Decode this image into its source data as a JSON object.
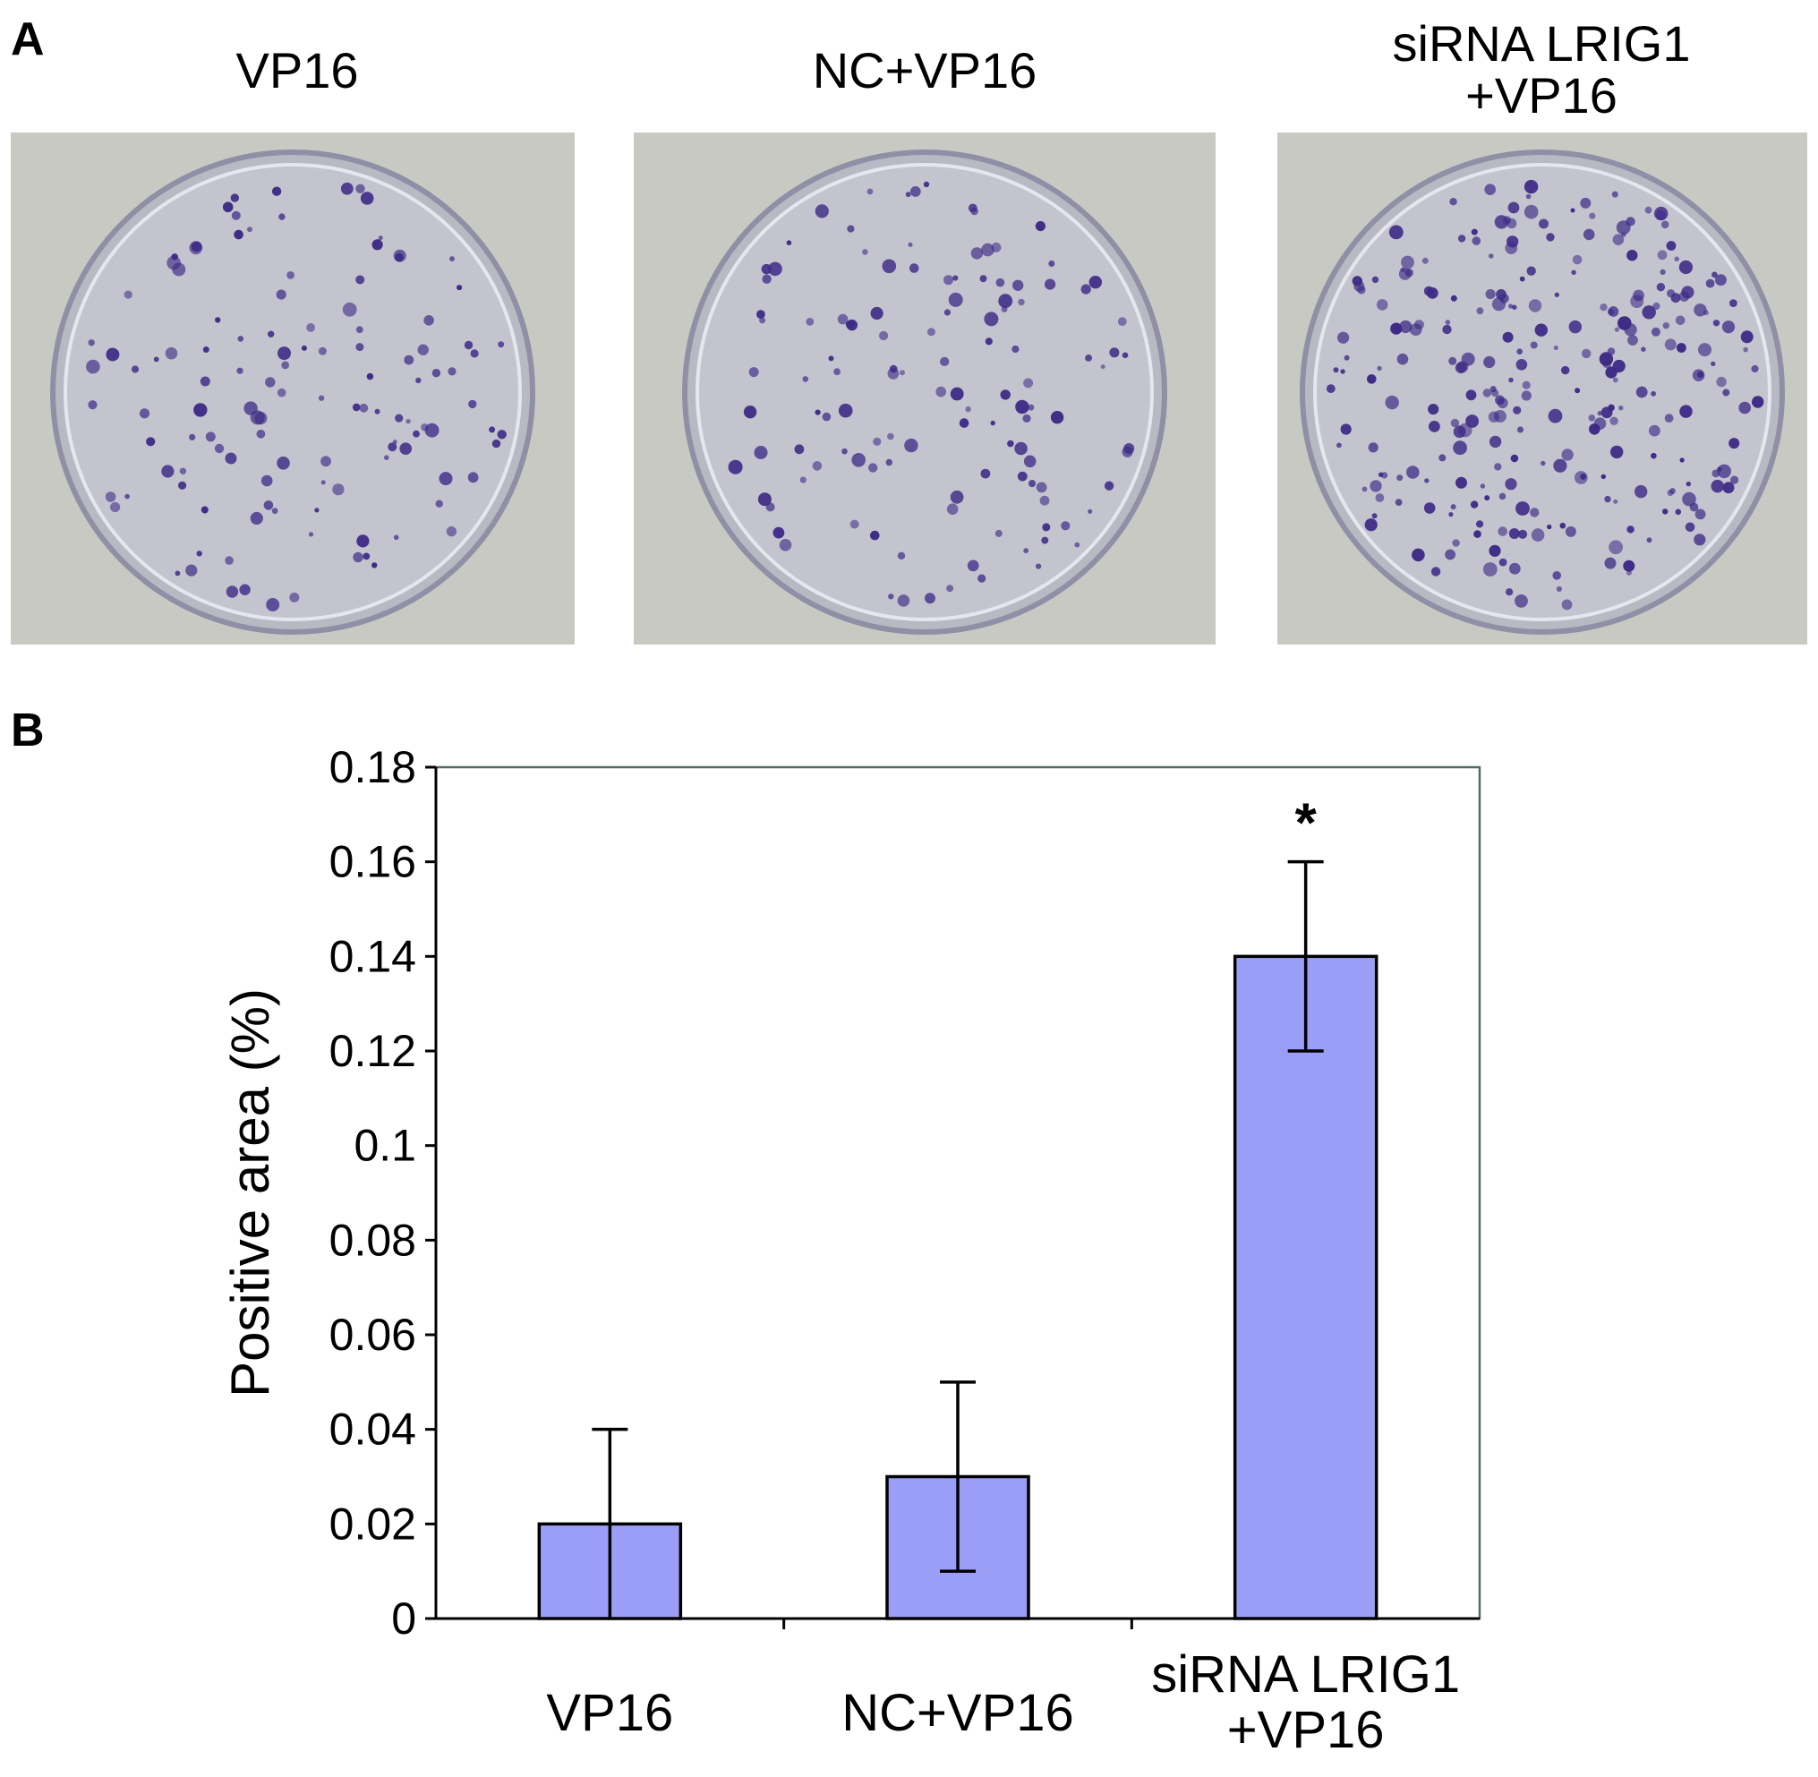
{
  "panels": {
    "a_letter": "A",
    "b_letter": "B"
  },
  "photos": [
    {
      "label_lines": [
        "VP16"
      ],
      "colony_density": "low"
    },
    {
      "label_lines": [
        "NC+VP16"
      ],
      "colony_density": "low"
    },
    {
      "label_lines": [
        "siRNA LRIG1",
        "+VP16"
      ],
      "colony_density": "high"
    }
  ],
  "colors": {
    "bar_fill": "#9b9ef7",
    "colony": "#3e2b86",
    "plate_bg": "#c9c9c4"
  },
  "chart_data": {
    "type": "bar",
    "title": "",
    "xlabel": "",
    "ylabel": "Positive area (%)",
    "ylim": [
      0,
      0.18
    ],
    "yticks": [
      "0",
      "0.02",
      "0.04",
      "0.06",
      "0.08",
      "0.1",
      "0.12",
      "0.14",
      "0.16",
      "0.18"
    ],
    "categories": [
      {
        "lines": [
          "VP16"
        ]
      },
      {
        "lines": [
          "NC+VP16"
        ]
      },
      {
        "lines": [
          "siRNA LRIG1",
          "+VP16"
        ]
      }
    ],
    "values": [
      0.02,
      0.03,
      0.14
    ],
    "errors": [
      0.02,
      0.02,
      0.02
    ],
    "annotations": [
      "",
      "",
      "*"
    ],
    "grid": false,
    "legend": "none"
  }
}
